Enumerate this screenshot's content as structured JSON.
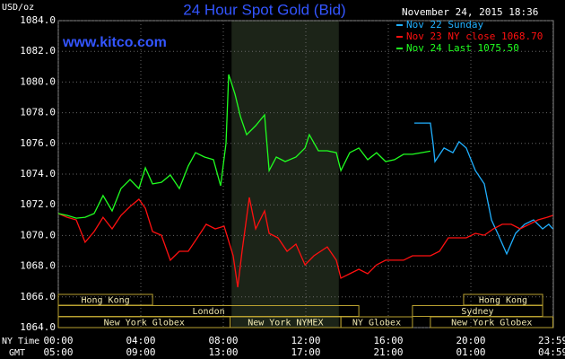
{
  "chart_data": {
    "type": "line",
    "title": "24 Hour Spot Gold (Bid)",
    "y_label": "USD/oz",
    "watermark": "www.kitco.com",
    "timestamp": "November 24, 2015 18:36",
    "xlim": [
      0,
      24
    ],
    "ylim": [
      1064,
      1084
    ],
    "yticks": [
      {
        "value": 1064,
        "label": "1064.0"
      },
      {
        "value": 1066,
        "label": "1066.0"
      },
      {
        "value": 1068,
        "label": "1068.0"
      },
      {
        "value": 1070,
        "label": "1070.0"
      },
      {
        "value": 1072,
        "label": "1072.0"
      },
      {
        "value": 1074,
        "label": "1074.0"
      },
      {
        "value": 1076,
        "label": "1076.0"
      },
      {
        "value": 1078,
        "label": "1078.0"
      },
      {
        "value": 1080,
        "label": "1080.0"
      },
      {
        "value": 1082,
        "label": "1082.0"
      },
      {
        "value": 1084,
        "label": "1084.0"
      }
    ],
    "x_label": "NY Time",
    "xticks": [
      {
        "value": 0,
        "label": "00:00"
      },
      {
        "value": 4,
        "label": "04:00"
      },
      {
        "value": 8,
        "label": "08:00"
      },
      {
        "value": 12,
        "label": "12:00"
      },
      {
        "value": 16,
        "label": "16:00"
      },
      {
        "value": 20,
        "label": "20:00"
      },
      {
        "value": 23.98,
        "label": "23:59"
      }
    ],
    "x2_label": "GMT",
    "x2_labels": [
      "05:00",
      "09:00",
      "13:00",
      "17:00",
      "21:00",
      "01:00",
      "04:59"
    ],
    "grid": true,
    "shaded_x": [
      8.4,
      13.6
    ],
    "sessions": [
      {
        "label": "Hong Kong",
        "row": 0,
        "start": 0,
        "end": 4.57
      },
      {
        "label": "Hong Kong",
        "row": 0,
        "start": 19.65,
        "end": 23.48
      },
      {
        "label": "London",
        "row": 1,
        "start": 0,
        "end": 14.57
      },
      {
        "label": "Sydney",
        "row": 1,
        "start": 17.17,
        "end": 23.48
      },
      {
        "label": "New York Globex",
        "row": 2,
        "start": 0,
        "end": 8.33
      },
      {
        "label": "New York NYMEX",
        "row": 2,
        "start": 8.33,
        "end": 13.7
      },
      {
        "label": "NY Globex",
        "row": 2,
        "start": 13.7,
        "end": 17.17
      },
      {
        "label": "New York Globex",
        "row": 2,
        "start": 18.04,
        "end": 23.98
      }
    ],
    "series": [
      {
        "name": "Nov 22 Sunday",
        "color": "#20b0ff",
        "x": [
          17.26,
          18.04,
          18.17,
          18.26,
          18.7,
          19.13,
          19.43,
          19.78,
          20.22,
          20.65,
          21.0,
          21.3,
          21.74,
          22.17,
          22.61,
          23.04,
          23.48,
          23.78,
          23.98
        ],
        "values": [
          1077.33,
          1077.33,
          1075.99,
          1074.82,
          1075.7,
          1075.4,
          1076.11,
          1075.7,
          1074.23,
          1073.36,
          1071.02,
          1070.14,
          1068.8,
          1070.14,
          1070.73,
          1071.02,
          1070.43,
          1070.73,
          1070.43
        ]
      },
      {
        "name": "Nov 23 NY close 1068.70",
        "color": "#ff1010",
        "x": [
          0,
          0.43,
          0.87,
          1.3,
          1.74,
          2.17,
          2.61,
          3.04,
          3.48,
          3.91,
          4.22,
          4.57,
          5.0,
          5.43,
          5.87,
          6.3,
          6.74,
          7.17,
          7.61,
          8.04,
          8.48,
          8.7,
          8.91,
          9.26,
          9.57,
          10.0,
          10.22,
          10.65,
          11.09,
          11.52,
          11.96,
          12.39,
          13.04,
          13.48,
          13.7,
          14.13,
          14.57,
          15.0,
          15.43,
          15.87,
          16.3,
          16.74,
          17.17,
          18.04,
          18.48,
          18.91,
          19.35,
          19.78,
          20.22,
          20.65,
          21.09,
          21.52,
          21.96,
          22.39,
          22.83,
          23.26,
          23.7,
          23.98
        ],
        "values": [
          1071.43,
          1071.19,
          1071.02,
          1069.56,
          1070.26,
          1071.19,
          1070.43,
          1071.31,
          1071.89,
          1072.36,
          1071.78,
          1070.26,
          1070.02,
          1068.39,
          1068.97,
          1068.97,
          1069.85,
          1070.73,
          1070.43,
          1070.61,
          1068.68,
          1066.63,
          1068.97,
          1072.48,
          1070.43,
          1071.6,
          1070.14,
          1069.85,
          1068.97,
          1069.44,
          1068.09,
          1068.68,
          1069.26,
          1068.39,
          1067.22,
          1067.51,
          1067.8,
          1067.51,
          1068.09,
          1068.39,
          1068.39,
          1068.39,
          1068.68,
          1068.68,
          1068.97,
          1069.85,
          1069.85,
          1069.85,
          1070.14,
          1070.02,
          1070.43,
          1070.73,
          1070.73,
          1070.43,
          1070.73,
          1071.02,
          1071.19,
          1071.31
        ]
      },
      {
        "name": "Nov 24 Last 1075.50",
        "color": "#20ff20",
        "x": [
          0,
          0.43,
          0.87,
          1.3,
          1.74,
          2.17,
          2.61,
          3.04,
          3.48,
          3.91,
          4.22,
          4.57,
          5.0,
          5.43,
          5.87,
          6.3,
          6.65,
          7.09,
          7.52,
          7.87,
          8.13,
          8.26,
          8.57,
          8.83,
          9.13,
          9.57,
          10.0,
          10.22,
          10.57,
          11.0,
          11.52,
          11.96,
          12.17,
          12.61,
          13.04,
          13.48,
          13.7,
          14.13,
          14.57,
          15.0,
          15.43,
          15.87,
          16.3,
          16.74,
          17.17,
          17.61,
          18.04
        ],
        "values": [
          1071.43,
          1071.31,
          1071.13,
          1071.19,
          1071.43,
          1072.6,
          1071.6,
          1073.06,
          1073.65,
          1073.06,
          1074.41,
          1073.36,
          1073.47,
          1073.94,
          1073.06,
          1074.53,
          1075.4,
          1075.11,
          1074.94,
          1073.24,
          1075.99,
          1080.49,
          1079.2,
          1077.74,
          1076.57,
          1077.16,
          1077.86,
          1074.23,
          1075.11,
          1074.82,
          1075.11,
          1075.7,
          1076.57,
          1075.52,
          1075.52,
          1075.4,
          1074.23,
          1075.4,
          1075.7,
          1074.94,
          1075.4,
          1074.82,
          1074.94,
          1075.29,
          1075.29,
          1075.4,
          1075.5
        ]
      }
    ]
  }
}
